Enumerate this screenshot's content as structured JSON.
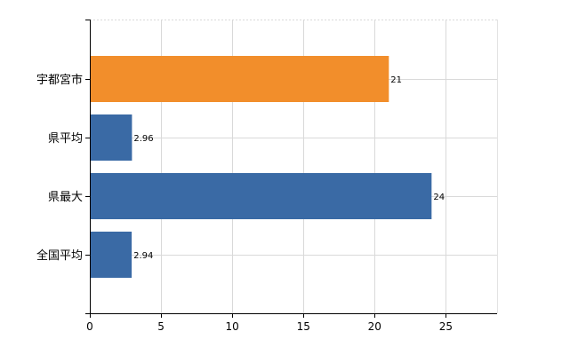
{
  "chart_data": {
    "type": "bar",
    "orientation": "horizontal",
    "categories": [
      "宇都宮市",
      "県平均",
      "県最大",
      "全国平均"
    ],
    "values": [
      21,
      2.96,
      24,
      2.94
    ],
    "value_labels": [
      "21",
      "2.96",
      "24",
      "2.94"
    ],
    "colors": [
      "#f28e2b",
      "#3a6aa5",
      "#3a6aa5",
      "#3a6aa5"
    ],
    "xlim": [
      0,
      28.6
    ],
    "xticks": [
      0,
      5,
      10,
      15,
      20,
      25
    ],
    "xtick_labels": [
      "0",
      "5",
      "10",
      "15",
      "20",
      "25"
    ],
    "grid": true,
    "title": "",
    "xlabel": "",
    "ylabel": ""
  }
}
